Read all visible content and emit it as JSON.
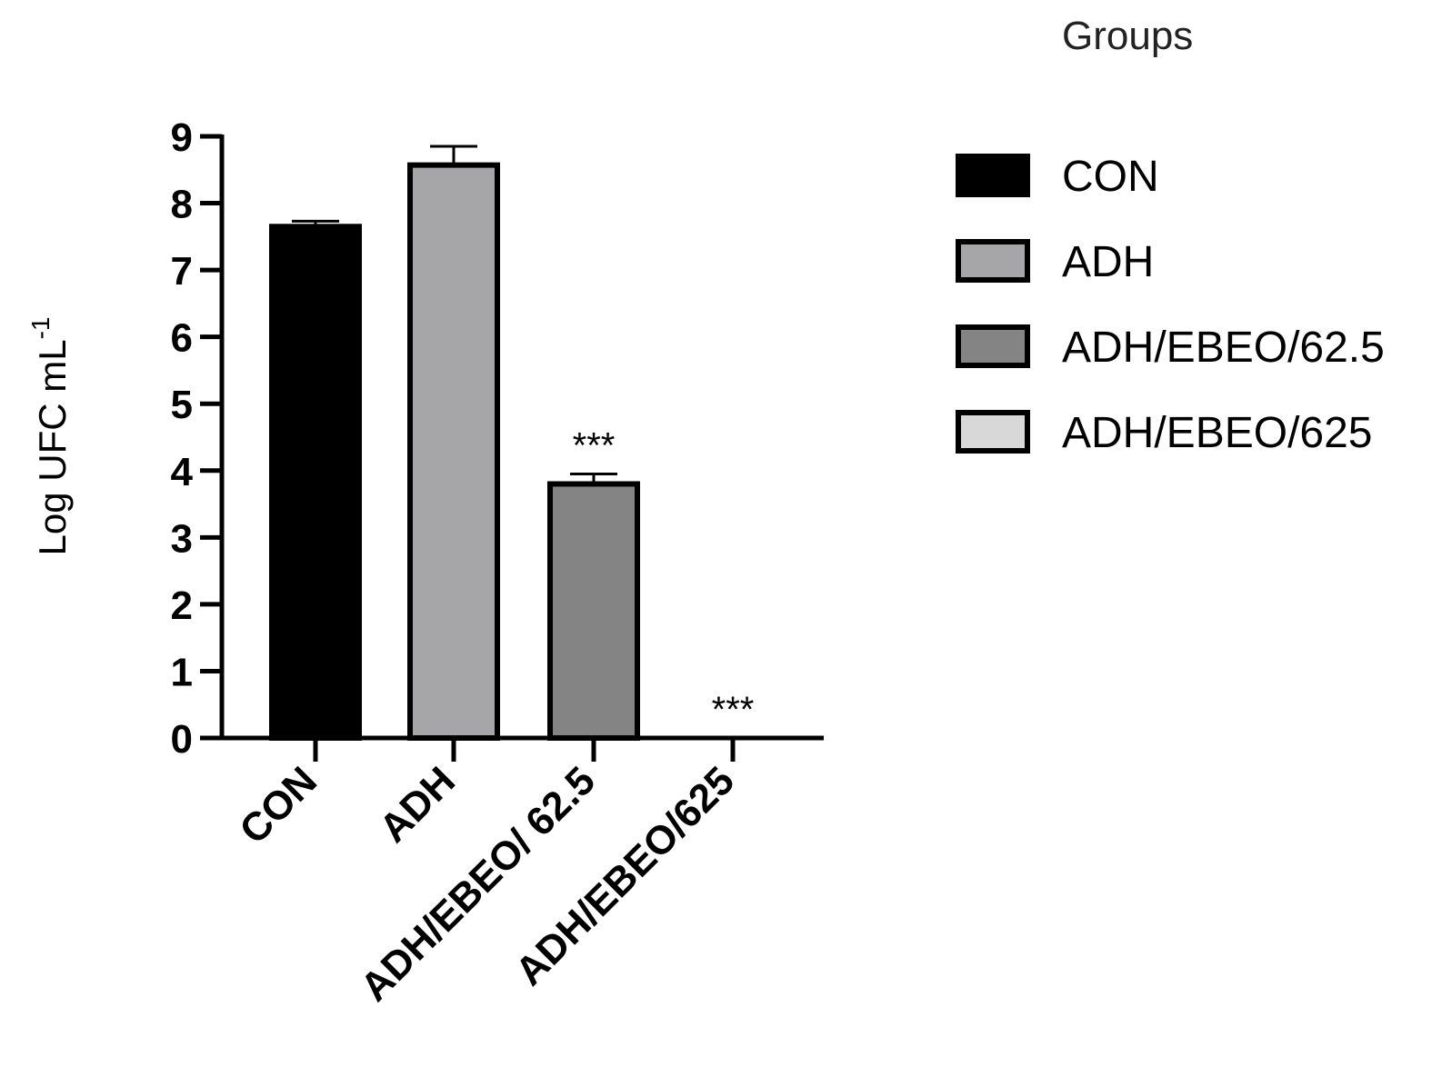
{
  "chart_data": {
    "type": "bar",
    "categories": [
      "CON",
      "ADH",
      "ADH/EBEO/ 62.5",
      "ADH/EBEO/625"
    ],
    "values": [
      7.65,
      8.57,
      3.8,
      0
    ],
    "errors": [
      0.08,
      0.28,
      0.15,
      0
    ],
    "significance": [
      "",
      "",
      "***",
      "***"
    ],
    "colors": [
      "#000000",
      "#a6a6a8",
      "#848484",
      "#d8d8d8"
    ],
    "ylabel": "Log UFC mL",
    "ylabel_superscript": "-1",
    "ylim": [
      0,
      9
    ],
    "yticks": [
      "0",
      "1",
      "2",
      "3",
      "4",
      "5",
      "6",
      "7",
      "8",
      "9"
    ],
    "grid": false,
    "legend": {
      "title": "Groups",
      "placement": "right",
      "entries": [
        "CON",
        "ADH",
        "ADH/EBEO/62.5",
        "ADH/EBEO/625"
      ]
    }
  }
}
